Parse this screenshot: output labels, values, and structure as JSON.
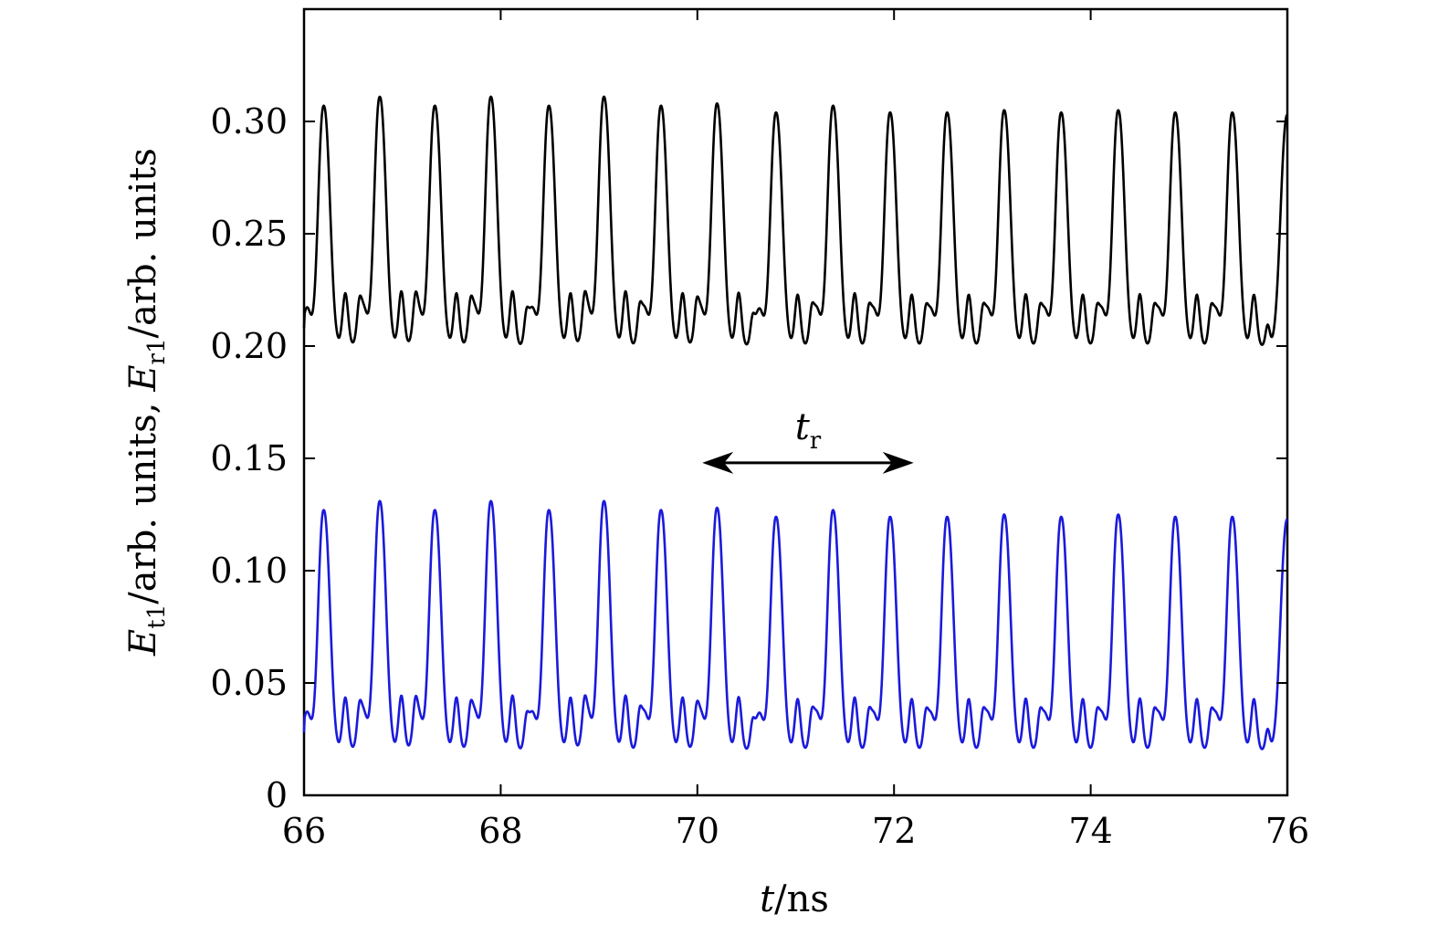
{
  "chart_data": {
    "type": "line",
    "title": "",
    "xlabel": {
      "var": "t",
      "rest": "/ns"
    },
    "ylabel": {
      "part1_var": "E",
      "part1_sub": "t1",
      "part1_rest": "/arb. units,",
      "part2_var": "E",
      "part2_sub": "r1",
      "part2_rest": "/arb. units"
    },
    "xlim": [
      66,
      76
    ],
    "ylim": [
      0,
      0.35
    ],
    "xticks": [
      66,
      68,
      70,
      72,
      74,
      76
    ],
    "xtick_labels": [
      "66",
      "68",
      "70",
      "72",
      "74",
      "76"
    ],
    "yticks": [
      0,
      0.05,
      0.1,
      0.15,
      0.2,
      0.25,
      0.3
    ],
    "ytick_labels": [
      "0",
      "0.05",
      "0.10",
      "0.15",
      "0.20",
      "0.25",
      "0.30"
    ],
    "grid": false,
    "legend": "none",
    "series": [
      {
        "color": "#000000",
        "baseline": 0.2,
        "peak_times": [
          66.2,
          66.77,
          67.33,
          67.9,
          68.49,
          69.05,
          69.63,
          70.2,
          70.8,
          71.38,
          71.96,
          72.54,
          73.12,
          73.7,
          74.28,
          74.86,
          75.44
        ],
        "peak_values": [
          0.307,
          0.311,
          0.307,
          0.311,
          0.307,
          0.311,
          0.307,
          0.308,
          0.304,
          0.307,
          0.304,
          0.304,
          0.305,
          0.304,
          0.305,
          0.304,
          0.304
        ],
        "end_value": 0.303
      },
      {
        "color": "#1a1adb",
        "baseline": 0.02,
        "peak_times": [
          66.2,
          66.77,
          67.33,
          67.9,
          68.49,
          69.05,
          69.63,
          70.2,
          70.8,
          71.38,
          71.96,
          72.54,
          73.12,
          73.7,
          74.28,
          74.86,
          75.44
        ],
        "peak_values": [
          0.127,
          0.131,
          0.127,
          0.131,
          0.127,
          0.131,
          0.127,
          0.128,
          0.124,
          0.127,
          0.124,
          0.124,
          0.125,
          0.124,
          0.125,
          0.124,
          0.124
        ],
        "end_value": 0.123
      }
    ],
    "annotation": {
      "label_var": "t",
      "label_sub": "r",
      "arrow_from_x": 70.05,
      "arrow_to_x": 72.2,
      "arrow_y": 0.148
    }
  }
}
